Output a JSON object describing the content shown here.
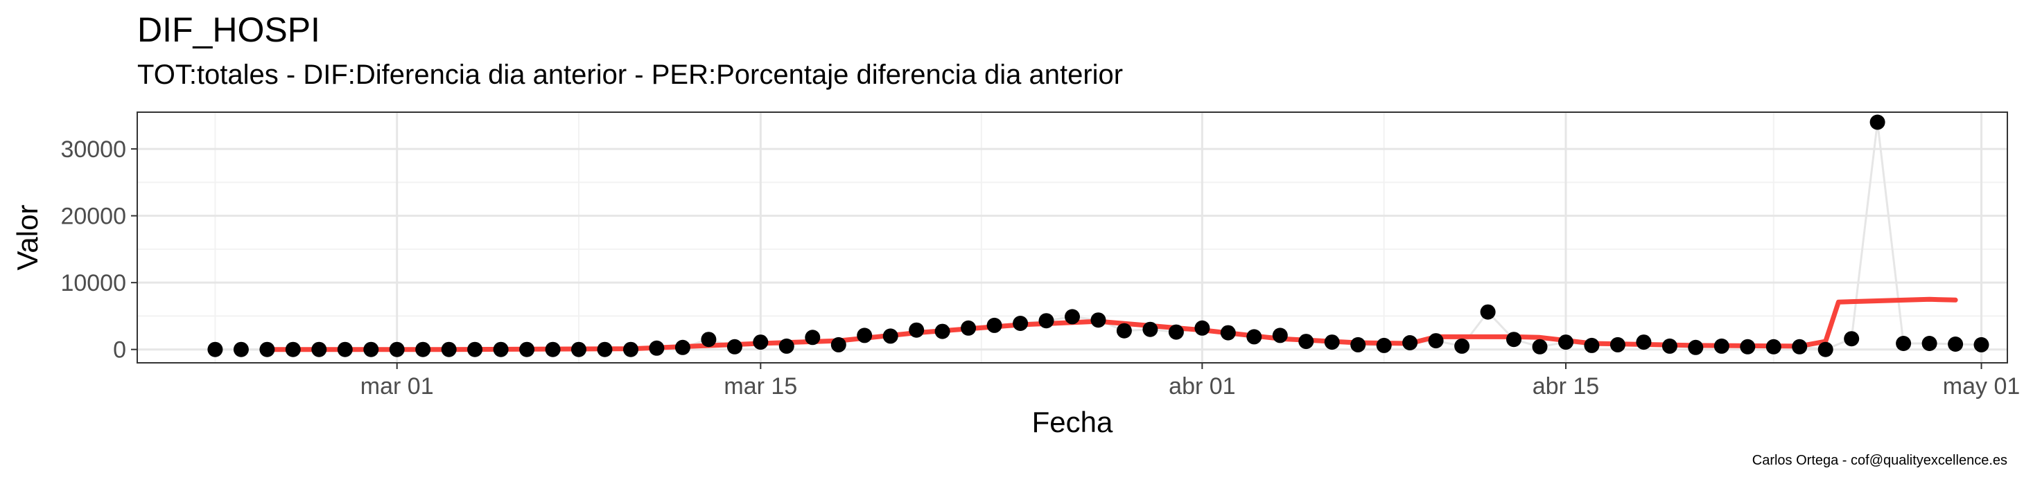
{
  "title": "DIF_HOSPI",
  "subtitle": "TOT:totales - DIF:Diferencia dia anterior - PER:Porcentaje diferencia dia anterior",
  "caption": "Carlos Ortega - cof@qualityexcellence.es",
  "chart_data": {
    "type": "scatter",
    "title": "DIF_HOSPI",
    "subtitle": "TOT:totales - DIF:Diferencia dia anterior - PER:Porcentaje diferencia dia anterior",
    "xlabel": "Fecha",
    "ylabel": "Valor",
    "xlim": [
      "2020-02-20",
      "2020-05-02"
    ],
    "ylim": [
      -2000,
      35500
    ],
    "grid": true,
    "legend": "none",
    "x_ticks": [
      {
        "date": "2020-03-01",
        "label": "mar 01"
      },
      {
        "date": "2020-03-15",
        "label": "mar 15"
      },
      {
        "date": "2020-04-01",
        "label": "abr 01"
      },
      {
        "date": "2020-04-15",
        "label": "abr 15"
      },
      {
        "date": "2020-05-01",
        "label": "may 01"
      }
    ],
    "y_ticks": [
      {
        "value": 0,
        "label": "0"
      },
      {
        "value": 10000,
        "label": "10000"
      },
      {
        "value": 20000,
        "label": "20000"
      },
      {
        "value": 30000,
        "label": "30000"
      }
    ],
    "colors": {
      "points": "#000000",
      "connector": "#e6e6e6",
      "smooth": "#f8433b"
    },
    "series": [
      {
        "values": [
          {
            "x": "2020-02-23",
            "y": 0
          },
          {
            "x": "2020-02-24",
            "y": 0
          },
          {
            "x": "2020-02-25",
            "y": 0
          },
          {
            "x": "2020-02-26",
            "y": 0
          },
          {
            "x": "2020-02-27",
            "y": 0
          },
          {
            "x": "2020-02-28",
            "y": 0
          },
          {
            "x": "2020-02-29",
            "y": 0
          },
          {
            "x": "2020-03-01",
            "y": 0
          },
          {
            "x": "2020-03-02",
            "y": 0
          },
          {
            "x": "2020-03-03",
            "y": 0
          },
          {
            "x": "2020-03-04",
            "y": 0
          },
          {
            "x": "2020-03-05",
            "y": 0
          },
          {
            "x": "2020-03-06",
            "y": 0
          },
          {
            "x": "2020-03-07",
            "y": 0
          },
          {
            "x": "2020-03-08",
            "y": 0
          },
          {
            "x": "2020-03-09",
            "y": 0
          },
          {
            "x": "2020-03-10",
            "y": 0
          },
          {
            "x": "2020-03-11",
            "y": 200
          },
          {
            "x": "2020-03-12",
            "y": 300
          },
          {
            "x": "2020-03-13",
            "y": 1500
          },
          {
            "x": "2020-03-14",
            "y": 400
          },
          {
            "x": "2020-03-15",
            "y": 1100
          },
          {
            "x": "2020-03-16",
            "y": 500
          },
          {
            "x": "2020-03-17",
            "y": 1800
          },
          {
            "x": "2020-03-18",
            "y": 700
          },
          {
            "x": "2020-03-19",
            "y": 2100
          },
          {
            "x": "2020-03-20",
            "y": 2000
          },
          {
            "x": "2020-03-21",
            "y": 2900
          },
          {
            "x": "2020-03-22",
            "y": 2700
          },
          {
            "x": "2020-03-23",
            "y": 3200
          },
          {
            "x": "2020-03-24",
            "y": 3600
          },
          {
            "x": "2020-03-25",
            "y": 3900
          },
          {
            "x": "2020-03-26",
            "y": 4300
          },
          {
            "x": "2020-03-27",
            "y": 4900
          },
          {
            "x": "2020-03-28",
            "y": 4400
          },
          {
            "x": "2020-03-29",
            "y": 2800
          },
          {
            "x": "2020-03-30",
            "y": 3000
          },
          {
            "x": "2020-03-31",
            "y": 2600
          },
          {
            "x": "2020-04-01",
            "y": 3200
          },
          {
            "x": "2020-04-02",
            "y": 2500
          },
          {
            "x": "2020-04-03",
            "y": 1900
          },
          {
            "x": "2020-04-04",
            "y": 2100
          },
          {
            "x": "2020-04-05",
            "y": 1200
          },
          {
            "x": "2020-04-06",
            "y": 1100
          },
          {
            "x": "2020-04-07",
            "y": 700
          },
          {
            "x": "2020-04-08",
            "y": 600
          },
          {
            "x": "2020-04-09",
            "y": 1000
          },
          {
            "x": "2020-04-10",
            "y": 1300
          },
          {
            "x": "2020-04-11",
            "y": 500
          },
          {
            "x": "2020-04-12",
            "y": 5600
          },
          {
            "x": "2020-04-13",
            "y": 1500
          },
          {
            "x": "2020-04-14",
            "y": 400
          },
          {
            "x": "2020-04-15",
            "y": 1100
          },
          {
            "x": "2020-04-16",
            "y": 600
          },
          {
            "x": "2020-04-17",
            "y": 700
          },
          {
            "x": "2020-04-18",
            "y": 1100
          },
          {
            "x": "2020-04-19",
            "y": 500
          },
          {
            "x": "2020-04-20",
            "y": 300
          },
          {
            "x": "2020-04-21",
            "y": 500
          },
          {
            "x": "2020-04-22",
            "y": 400
          },
          {
            "x": "2020-04-23",
            "y": 400
          },
          {
            "x": "2020-04-24",
            "y": 400
          },
          {
            "x": "2020-04-25",
            "y": 0
          },
          {
            "x": "2020-04-26",
            "y": 1600
          },
          {
            "x": "2020-04-27",
            "y": 34000
          },
          {
            "x": "2020-04-28",
            "y": 900
          },
          {
            "x": "2020-04-29",
            "y": 900
          },
          {
            "x": "2020-04-30",
            "y": 800
          },
          {
            "x": "2020-05-01",
            "y": 700
          }
        ]
      }
    ],
    "smooth_line": [
      {
        "x": "2020-02-25",
        "y": 0
      },
      {
        "x": "2020-03-03",
        "y": 0
      },
      {
        "x": "2020-03-10",
        "y": 100
      },
      {
        "x": "2020-03-15",
        "y": 900
      },
      {
        "x": "2020-03-18",
        "y": 1300
      },
      {
        "x": "2020-03-21",
        "y": 2500
      },
      {
        "x": "2020-03-25",
        "y": 3700
      },
      {
        "x": "2020-03-28",
        "y": 4200
      },
      {
        "x": "2020-04-01",
        "y": 2900
      },
      {
        "x": "2020-04-04",
        "y": 1600
      },
      {
        "x": "2020-04-07",
        "y": 1000
      },
      {
        "x": "2020-04-09",
        "y": 900
      },
      {
        "x": "2020-04-10",
        "y": 1900
      },
      {
        "x": "2020-04-13",
        "y": 1900
      },
      {
        "x": "2020-04-14",
        "y": 1800
      },
      {
        "x": "2020-04-16",
        "y": 900
      },
      {
        "x": "2020-04-20",
        "y": 600
      },
      {
        "x": "2020-04-24",
        "y": 500
      },
      {
        "x": "2020-04-25",
        "y": 1200
      },
      {
        "x": "2020-04-25.5",
        "y": 7100
      },
      {
        "x": "2020-04-29",
        "y": 7500
      },
      {
        "x": "2020-04-30",
        "y": 7400
      }
    ]
  }
}
